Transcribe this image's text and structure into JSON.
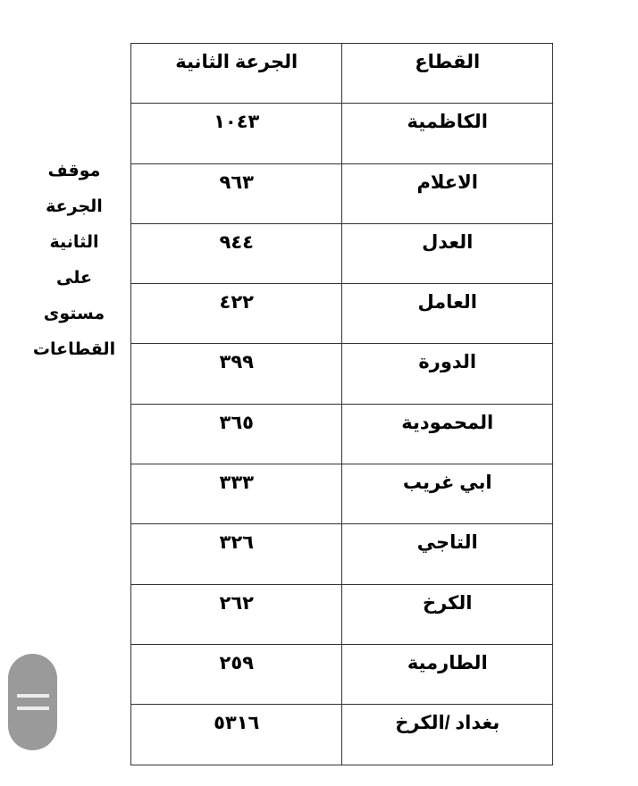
{
  "table": {
    "headers": {
      "sector": "القطاع",
      "second_dose": "الجرعة الثانية"
    },
    "rows": [
      {
        "sector": "الكاظمية",
        "value": "١٠٤٣"
      },
      {
        "sector": "الاعلام",
        "value": "٩٦٣"
      },
      {
        "sector": "العدل",
        "value": "٩٤٤"
      },
      {
        "sector": "العامل",
        "value": "٤٢٢"
      },
      {
        "sector": "الدورة",
        "value": "٣٩٩"
      },
      {
        "sector": "المحمودية",
        "value": "٣٦٥"
      },
      {
        "sector": "ابي غريب",
        "value": "٣٣٣"
      },
      {
        "sector": "التاجي",
        "value": "٣٢٦"
      },
      {
        "sector": "الكرخ",
        "value": "٢٦٢"
      },
      {
        "sector": "الطارمية",
        "value": "٢٥٩"
      },
      {
        "sector": "بغداد /الكرخ",
        "value": "٥٣١٦"
      }
    ]
  },
  "side_title_lines": [
    "موقف",
    "الجرعة",
    "الثانية",
    "على",
    "مستوى",
    "القطاعات"
  ],
  "floating_button": {
    "icon": "menu-lines-icon",
    "color": "#9a9a9a"
  }
}
